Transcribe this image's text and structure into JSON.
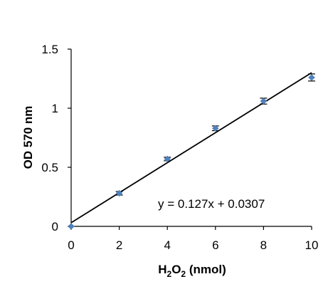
{
  "chart_data": {
    "type": "scatter",
    "xlabel": {
      "base": "H",
      "sub1": "2",
      "mid": "O",
      "sub2": "2",
      "rest": " (nmol)"
    },
    "ylabel": "OD 570 nm",
    "xlim": [
      0,
      10
    ],
    "ylim": [
      0,
      1.5
    ],
    "x_ticks": [
      0,
      2,
      4,
      6,
      8,
      10
    ],
    "y_ticks": [
      0,
      0.5,
      1,
      1.5
    ],
    "x_tick_labels": [
      "0",
      "2",
      "4",
      "6",
      "8",
      "10"
    ],
    "y_tick_labels": [
      "0",
      "0.5",
      "1",
      "1.5"
    ],
    "grid": false,
    "series": [
      {
        "x": [
          0,
          2,
          4,
          6,
          8,
          10
        ],
        "y": [
          0.0,
          0.28,
          0.57,
          0.83,
          1.06,
          1.26
        ],
        "error": [
          0.0,
          0.015,
          0.015,
          0.02,
          0.025,
          0.03
        ],
        "color": "#4f81bd"
      }
    ],
    "trendline": {
      "slope": 0.127,
      "intercept": 0.0307,
      "color": "#000000"
    },
    "annotation": "y = 0.127x + 0.0307"
  }
}
